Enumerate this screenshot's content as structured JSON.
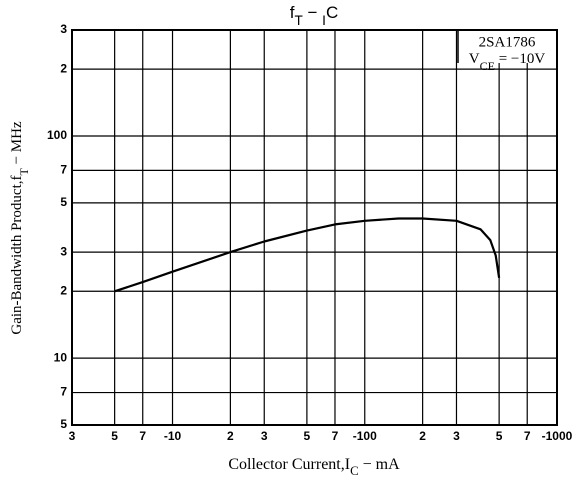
{
  "chart_data": {
    "type": "line",
    "title": [
      "f",
      "T",
      "  −  ",
      "I",
      "C"
    ],
    "x_label": [
      "Collector Current,I",
      "C",
      " − mA"
    ],
    "y_label": [
      "Gain-Bandwidth Product,f",
      "T",
      " − MHz"
    ],
    "annotation": {
      "part": "2SA1786",
      "condition": [
        "V",
        "CE",
        " = −10V"
      ]
    },
    "x": [
      -5,
      -7,
      -10,
      -20,
      -30,
      -50,
      -70,
      -100,
      -150,
      -200,
      -300,
      -400,
      -450,
      -480,
      -500
    ],
    "values": [
      20,
      22,
      24.5,
      30,
      33.5,
      37.5,
      40,
      41.5,
      42.5,
      42.5,
      41.5,
      38,
      34,
      29,
      23
    ],
    "color": "#000000",
    "xlog": true,
    "ylog": true,
    "grid": true,
    "xlim": [
      -3,
      -1000
    ],
    "xticks": [
      {
        "value": -3,
        "label": "3"
      },
      {
        "value": -5,
        "label": "5"
      },
      {
        "value": -7,
        "label": "7"
      },
      -10,
      {
        "value": -20,
        "label": "2"
      },
      {
        "value": -30,
        "label": "3"
      },
      {
        "value": -50,
        "label": "5"
      },
      {
        "value": -70,
        "label": "7"
      },
      -100,
      {
        "value": -200,
        "label": "2"
      },
      {
        "value": -300,
        "label": "3"
      },
      {
        "value": -500,
        "label": "5"
      },
      {
        "value": -700,
        "label": "7"
      },
      -1000
    ],
    "ylim": [
      5,
      300
    ],
    "yticks": [
      5,
      7,
      10,
      {
        "value": 20,
        "label": "2"
      },
      {
        "value": 30,
        "label": "3"
      },
      {
        "value": 50,
        "label": "5"
      },
      {
        "value": 70,
        "label": "7"
      },
      100,
      {
        "value": 200,
        "label": "2"
      },
      {
        "value": 300,
        "label": "3"
      }
    ]
  }
}
